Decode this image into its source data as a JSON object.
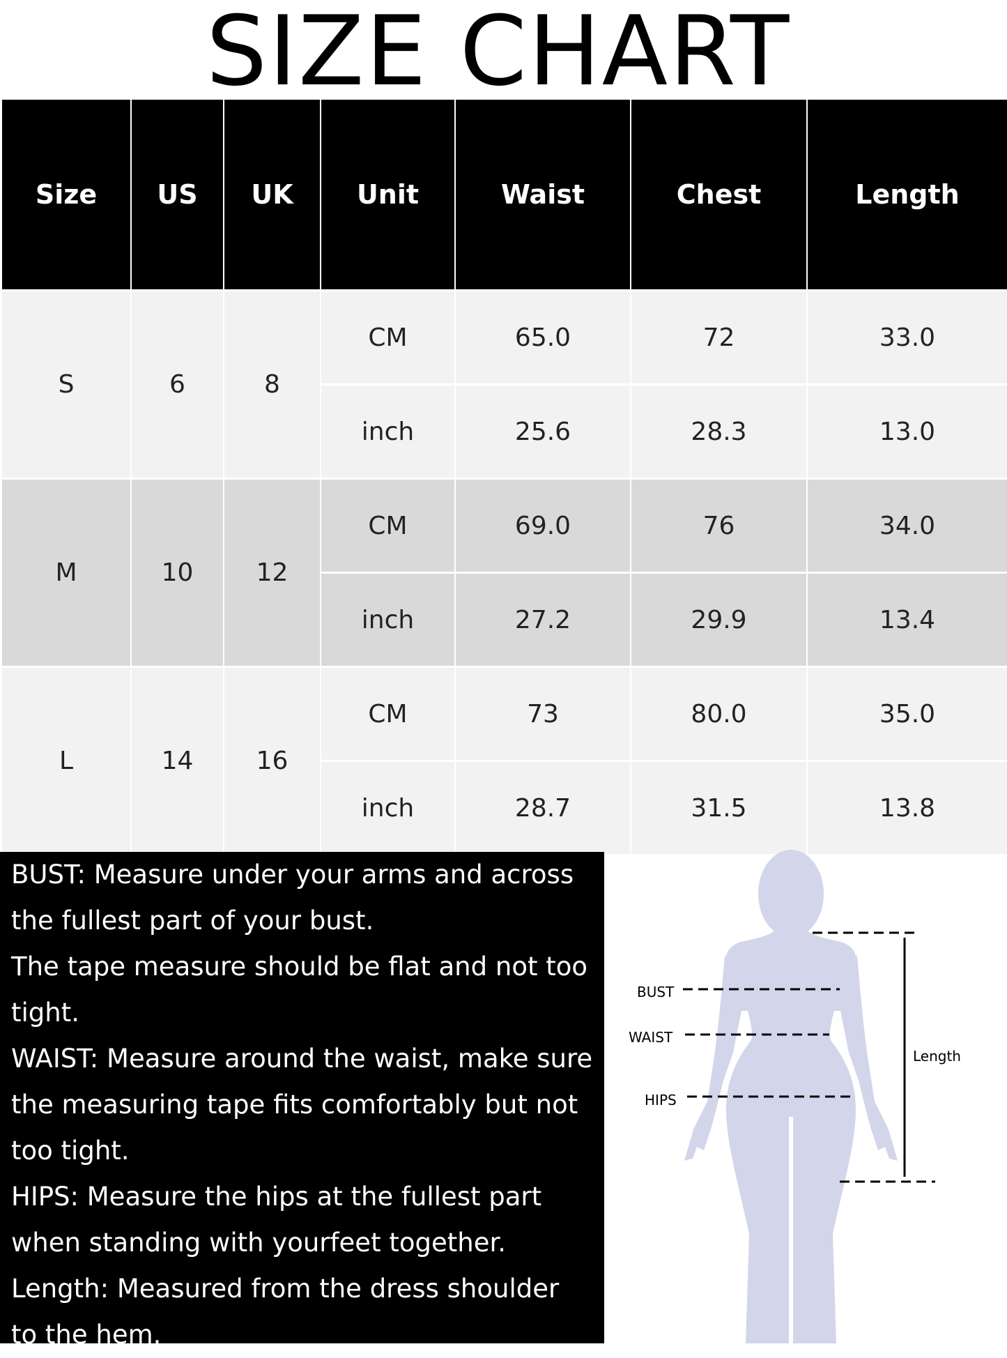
{
  "title": "SIZE CHART",
  "table": {
    "headers": [
      "Size",
      "US",
      "UK",
      "Unit",
      "Waist",
      "Chest",
      "Length"
    ],
    "rows": [
      {
        "size": "S",
        "us": "6",
        "uk": "8",
        "cm": {
          "unit": "CM",
          "waist": "65.0",
          "chest": "72",
          "length": "33.0"
        },
        "inch": {
          "unit": "inch",
          "waist": "25.6",
          "chest": "28.3",
          "length": "13.0"
        }
      },
      {
        "size": "M",
        "us": "10",
        "uk": "12",
        "cm": {
          "unit": "CM",
          "waist": "69.0",
          "chest": "76",
          "length": "34.0"
        },
        "inch": {
          "unit": "inch",
          "waist": "27.2",
          "chest": "29.9",
          "length": "13.4"
        }
      },
      {
        "size": "L",
        "us": "14",
        "uk": "16",
        "cm": {
          "unit": "CM",
          "waist": "73",
          "chest": "80.0",
          "length": "35.0"
        },
        "inch": {
          "unit": "inch",
          "waist": "28.7",
          "chest": "31.5",
          "length": "13.8"
        }
      }
    ]
  },
  "notes": [
    "BUST: Measure under your arms and across the fullest part of your bust.",
    "The tape measure should be flat and not too tight.",
    "WAIST: Measure around the waist, make sure the measuring tape fits comfortably but not too tight.",
    "HIPS: Measure the hips at the fullest part when standing with yourfeet together.",
    "Length: Measured from the dress shoulder to the hem."
  ],
  "figure": {
    "bust": "BUST",
    "waist": "WAIST",
    "hips": "HIPS",
    "length": "Length",
    "silhouette_color": "#d3d6ea"
  }
}
